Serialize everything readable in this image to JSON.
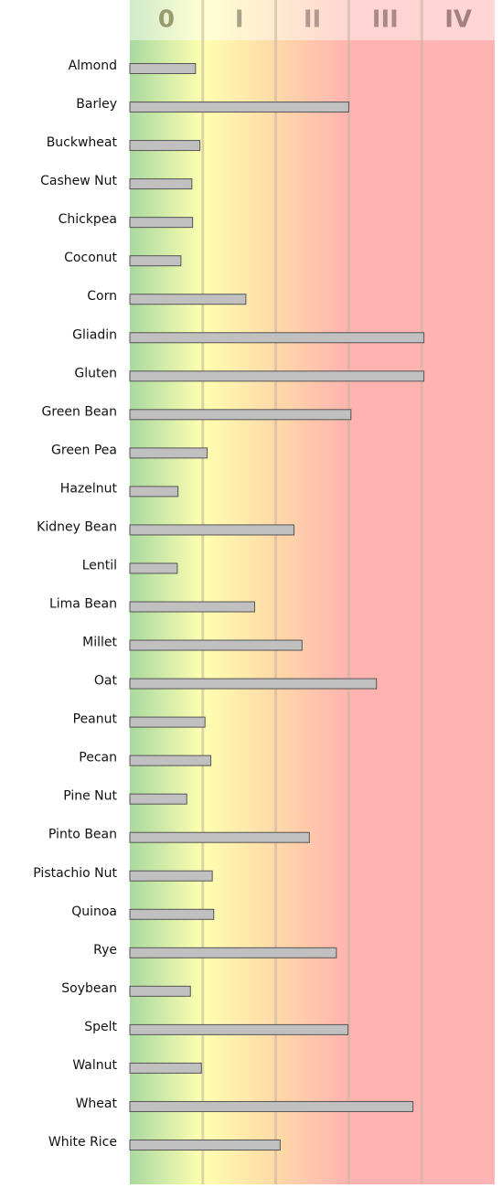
{
  "chart_data": {
    "type": "bar",
    "orientation": "horizontal",
    "categories": [
      "Almond",
      "Barley",
      "Buckwheat",
      "Cashew Nut",
      "Chickpea",
      "Coconut",
      "Corn",
      "Gliadin",
      "Gluten",
      "Green Bean",
      "Green Pea",
      "Hazelnut",
      "Kidney Bean",
      "Lentil",
      "Lima Bean",
      "Millet",
      "Oat",
      "Peanut",
      "Pecan",
      "Pine Nut",
      "Pinto Bean",
      "Pistachio Nut",
      "Quinoa",
      "Rye",
      "Soybean",
      "Spelt",
      "Walnut",
      "Wheat",
      "White Rice"
    ],
    "values": [
      0.9,
      3.0,
      0.96,
      0.85,
      0.86,
      0.7,
      1.59,
      4.03,
      4.03,
      3.03,
      1.06,
      0.66,
      2.25,
      0.65,
      1.71,
      2.36,
      3.38,
      1.03,
      1.11,
      0.78,
      2.46,
      1.13,
      1.15,
      2.83,
      0.83,
      2.99,
      0.98,
      3.88,
      2.06
    ],
    "color": "#c0c0c0",
    "xlim": [
      0,
      5
    ],
    "xticks": [
      {
        "value": 0.5,
        "label": "0"
      },
      {
        "value": 1.5,
        "label": "I"
      },
      {
        "value": 2.5,
        "label": "II"
      },
      {
        "value": 3.5,
        "label": "III"
      },
      {
        "value": 4.5,
        "label": "IV"
      }
    ],
    "xgrid": [
      1,
      2,
      3,
      4
    ]
  }
}
